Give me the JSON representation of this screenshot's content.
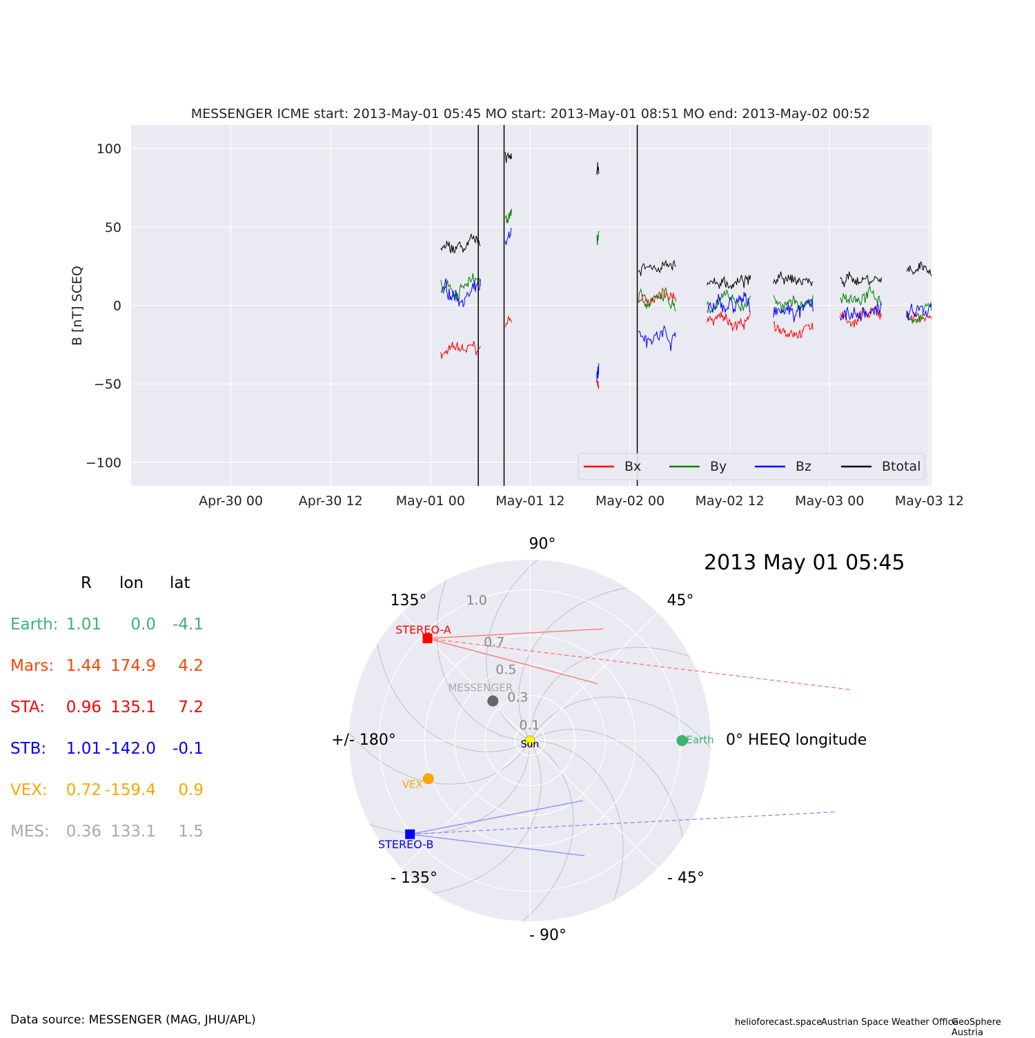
{
  "chart_data": [
    {
      "type": "line",
      "title": "MESSENGER    ICME start: 2013-May-01 05:45   MO start: 2013-May-01 08:51   MO end: 2013-May-02 00:52",
      "ylabel": "B [nT] SCEQ",
      "xlabel": "",
      "x_range": [
        "2013-04-29 12:00",
        "2013-05-03 12:15"
      ],
      "ylim": [
        -115,
        115
      ],
      "yticks": [
        -100,
        -50,
        0,
        50,
        100
      ],
      "ytick_labels": [
        "−100",
        "−50",
        "0",
        "50",
        "100"
      ],
      "xticks": [
        "2013-04-30 00:00",
        "2013-04-30 12:00",
        "2013-05-01 00:00",
        "2013-05-01 12:00",
        "2013-05-02 00:00",
        "2013-05-02 12:00",
        "2013-05-03 00:00",
        "2013-05-03 12:00"
      ],
      "xtick_labels": [
        "Apr-30 00",
        "Apr-30 12",
        "May-01 00",
        "May-01 12",
        "May-02 00",
        "May-02 12",
        "May-03 00",
        "May-03 12"
      ],
      "grid": true,
      "legend": "lower-right",
      "series": [
        {
          "name": "Bx",
          "color": "#ff0000"
        },
        {
          "name": "By",
          "color": "#008000"
        },
        {
          "name": "Bz",
          "color": "#0000ff"
        },
        {
          "name": "Btotal",
          "color": "#000000"
        }
      ],
      "data_segments": [
        {
          "start": "2013-05-01 01:15",
          "end": "2013-05-01 06:00",
          "Bx": -30,
          "By": 12,
          "Bz": 8,
          "Btotal": 35
        },
        {
          "start": "2013-05-01 09:00",
          "end": "2013-05-01 09:45",
          "Bx": -10,
          "By": 60,
          "Bz": 40,
          "Btotal": 95
        },
        {
          "start": "2013-05-01 20:00",
          "end": "2013-05-01 20:15",
          "Bx": -50,
          "By": 45,
          "Bz": -45,
          "Btotal": 85
        },
        {
          "start": "2013-05-02 01:00",
          "end": "2013-05-02 05:30",
          "Bx": 5,
          "By": 3,
          "Bz": -17,
          "Btotal": 25
        },
        {
          "start": "2013-05-02 09:15",
          "end": "2013-05-02 14:30",
          "Bx": -10,
          "By": 2,
          "Bz": -2,
          "Btotal": 15
        },
        {
          "start": "2013-05-02 17:15",
          "end": "2013-05-02 22:00",
          "Bx": -12,
          "By": 2,
          "Bz": -5,
          "Btotal": 15
        },
        {
          "start": "2013-05-03 01:15",
          "end": "2013-05-03 06:15",
          "Bx": -8,
          "By": 5,
          "Bz": -5,
          "Btotal": 18
        },
        {
          "start": "2013-05-03 09:15",
          "end": "2013-05-03 12:15",
          "Bx": -5,
          "By": -5,
          "Bz": -5,
          "Btotal": 20
        }
      ],
      "event_lines": [
        "2013-05-01 05:45",
        "2013-05-01 08:51",
        "2013-05-02 00:52"
      ]
    },
    {
      "type": "scatter",
      "title": "2013 May 01  05:45",
      "projection": "polar",
      "radial_ticks": [
        0.1,
        0.3,
        0.5,
        0.7,
        1.0
      ],
      "radial_tick_labels": [
        "0.1",
        "0.3",
        "0.5",
        "0.7",
        "1.0"
      ],
      "r_max": 1.2,
      "angle_labels": [
        {
          "angle": 90,
          "text": "90°"
        },
        {
          "angle": 45,
          "text": "45°"
        },
        {
          "angle": 0,
          "text": "0° HEEQ longitude"
        },
        {
          "angle": -45,
          "text": "- 45°"
        },
        {
          "angle": -90,
          "text": "- 90°"
        },
        {
          "angle": -135,
          "text": "- 135°"
        },
        {
          "angle": 180,
          "text": "+/- 180°"
        },
        {
          "angle": 135,
          "text": "135°"
        }
      ],
      "bodies": [
        {
          "name": "Sun",
          "r": 0.0,
          "lon": 0.0,
          "color": "#ffff00",
          "marker": "circle"
        },
        {
          "name": "Earth",
          "r": 1.01,
          "lon": 0.0,
          "color": "#3cb371",
          "marker": "circle"
        },
        {
          "name": "STEREO-A",
          "r": 0.96,
          "lon": 135.1,
          "color": "#ff0000",
          "marker": "square"
        },
        {
          "name": "STEREO-B",
          "r": 1.01,
          "lon": -142.0,
          "color": "#0000ff",
          "marker": "square"
        },
        {
          "name": "VEX",
          "r": 0.72,
          "lon": -159.4,
          "color": "#ffa500",
          "marker": "circle"
        },
        {
          "name": "MESSENGER",
          "r": 0.36,
          "lon": 133.1,
          "color": "#666666",
          "marker": "circle"
        }
      ],
      "heliospheric_imager_fov": [
        {
          "from": "STEREO-A",
          "color": "#ff7070",
          "angles_deg": [
            -48,
            -38,
            -30
          ]
        },
        {
          "from": "STEREO-B",
          "color": "#8888ff",
          "angles_deg": [
            45,
            35,
            27
          ]
        }
      ]
    }
  ],
  "positions_table": {
    "headers": [
      "R",
      "lon",
      "lat"
    ],
    "rows": [
      {
        "label": "Earth:",
        "R": "1.01",
        "lon": "0.0",
        "lat": "-4.1",
        "color": "#3cb371"
      },
      {
        "label": "Mars:",
        "R": "1.44",
        "lon": "174.9",
        "lat": "4.2",
        "color": "#ff4500"
      },
      {
        "label": "STA:",
        "R": "0.96",
        "lon": "135.1",
        "lat": "7.2",
        "color": "#ff0000"
      },
      {
        "label": "STB:",
        "R": "1.01",
        "lon": "-142.0",
        "lat": "-0.1",
        "color": "#0000ff"
      },
      {
        "label": "VEX:",
        "R": "0.72",
        "lon": "-159.4",
        "lat": "0.9",
        "color": "#ffa500"
      },
      {
        "label": "MES:",
        "R": "0.36",
        "lon": "133.1",
        "lat": "1.5",
        "color": "#a9a9a9"
      }
    ]
  },
  "footer": {
    "data_source": "Data source: MESSENGER (MAG, JHU/APL)",
    "credits": [
      "helioforecast.space",
      "Austrian Space Weather Office",
      "GeoSphere Austria"
    ]
  }
}
